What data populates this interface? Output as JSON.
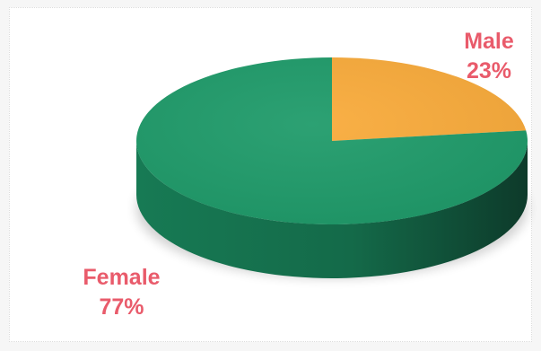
{
  "chart_data": {
    "type": "pie",
    "categories": [
      "Male",
      "Female"
    ],
    "values": [
      23,
      77
    ],
    "value_labels": [
      "23%",
      "77%"
    ],
    "colors": [
      "#f9ab3b",
      "#1f9b6a"
    ],
    "label_color": "#e95b6b",
    "style": "3d"
  }
}
